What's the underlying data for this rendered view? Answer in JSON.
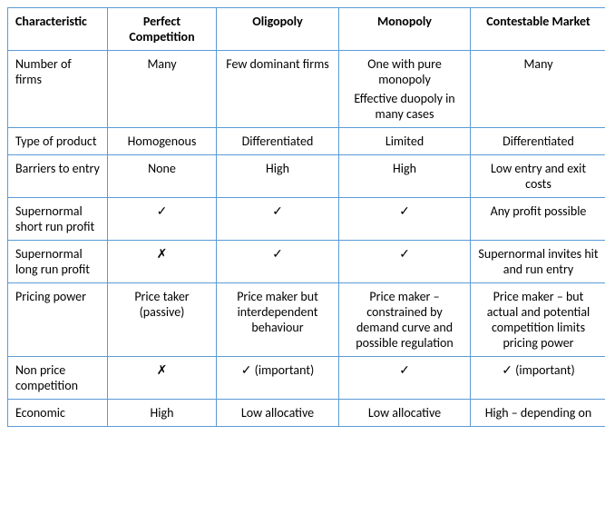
{
  "table": {
    "border_color": "#5b9bd5",
    "background_color": "#ffffff",
    "text_color": "#000000",
    "font_family": "Calibri",
    "header_fontsize": 14,
    "cell_fontsize": 14,
    "columns": [
      "Characteristic",
      "Perfect Competition",
      "Oligopoly",
      "Monopoly",
      "Contestable Market"
    ],
    "rows": [
      {
        "label": "Number of firms",
        "cells": [
          "Many",
          "Few dominant firms",
          "One with pure monopoly|Effective duopoly in many cases",
          "Many"
        ]
      },
      {
        "label": "Type of product",
        "cells": [
          "Homogenous",
          "Differentiated",
          "Limited",
          "Differentiated"
        ]
      },
      {
        "label": "Barriers to entry",
        "cells": [
          "None",
          "High",
          "High",
          "Low entry and exit costs"
        ]
      },
      {
        "label": "Supernormal short run profit",
        "cells": [
          "✓",
          "✓",
          "✓",
          "Any profit possible"
        ]
      },
      {
        "label": "Supernormal long run profit",
        "cells": [
          "✗",
          "✓",
          "✓",
          "Supernormal invites hit and run entry"
        ]
      },
      {
        "label": "Pricing power",
        "cells": [
          "Price taker (passive)",
          "Price maker but interdependent behaviour",
          "Price maker – constrained by demand curve and possible regulation",
          "Price maker – but actual and potential competition limits pricing power"
        ]
      },
      {
        "label": "Non price competition",
        "cells": [
          "✗",
          "✓ (important)",
          "✓",
          "✓ (important)"
        ]
      },
      {
        "label": "Economic",
        "cells": [
          "High",
          "Low allocative",
          "Low allocative",
          "High – depending on"
        ]
      }
    ]
  }
}
